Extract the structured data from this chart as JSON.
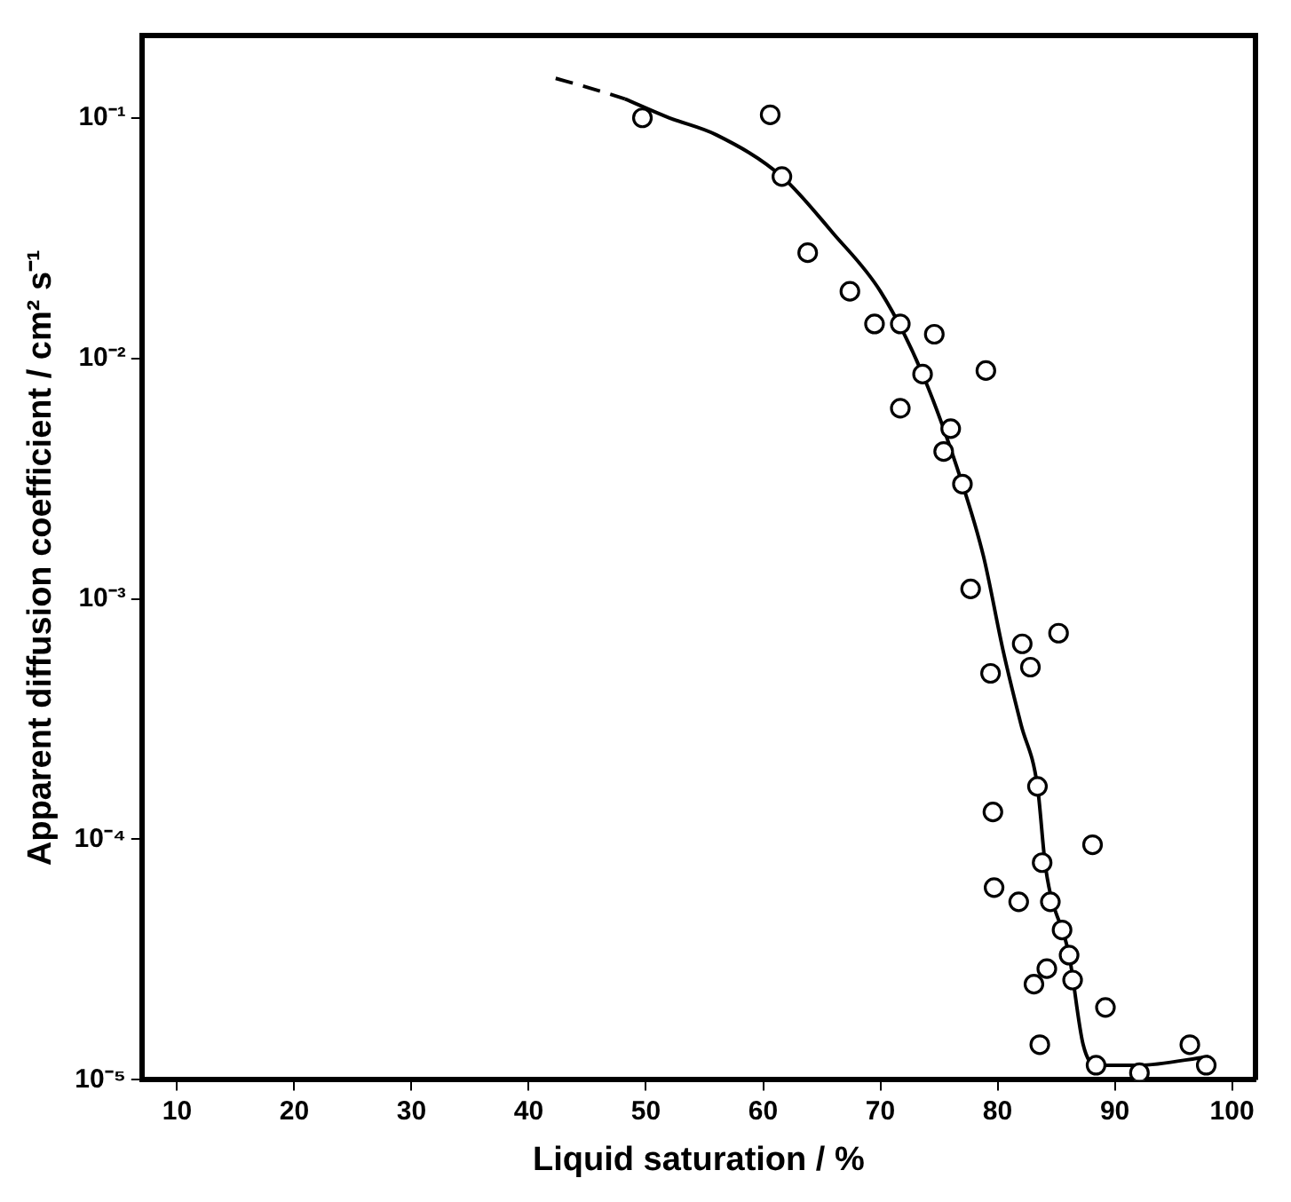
{
  "chart_data": {
    "type": "scatter",
    "xlabel": "Liquid saturation / %",
    "ylabel": "Apparent diffusion coefficient / cm² s⁻¹",
    "log": "y",
    "grid": false,
    "legend": false,
    "xlim": [
      7,
      102
    ],
    "xticks": [
      10,
      20,
      30,
      40,
      50,
      60,
      70,
      80,
      90,
      100
    ],
    "ylim": [
      1e-05,
      0.22
    ],
    "yticks": [
      {
        "value": 0.1,
        "label": "10⁻¹"
      },
      {
        "value": 0.01,
        "label": "10⁻²"
      },
      {
        "value": 0.001,
        "label": "10⁻³"
      },
      {
        "value": 0.0001,
        "label": "10⁻⁴"
      },
      {
        "value": 1e-05,
        "label": "10⁻⁵"
      }
    ],
    "series": [
      {
        "color": "#000000",
        "marker": "circle",
        "x": [
          49.7,
          60.6,
          61.6,
          63.8,
          67.4,
          69.5,
          71.7,
          74.6,
          79.0,
          73.6,
          71.7,
          76.0,
          75.4,
          77.0,
          77.7,
          82.1,
          85.2,
          79.4,
          82.8,
          83.4,
          79.6,
          88.1,
          83.8,
          79.7,
          81.8,
          84.5,
          85.5,
          86.1,
          84.2,
          86.4,
          83.1,
          89.2,
          83.6,
          88.4,
          92.1,
          96.4,
          97.8
        ],
        "values": [
          0.1,
          0.103,
          0.057,
          0.0275,
          0.019,
          0.0139,
          0.0139,
          0.0126,
          0.0089,
          0.0086,
          0.0062,
          0.0051,
          0.0041,
          0.003,
          0.0011,
          0.00065,
          0.00072,
          0.00049,
          0.00052,
          0.000166,
          0.00013,
          9.5e-05,
          8e-05,
          6.3e-05,
          5.5e-05,
          5.5e-05,
          4.2e-05,
          3.3e-05,
          2.9e-05,
          2.6e-05,
          2.5e-05,
          2e-05,
          1.4e-05,
          1.15e-05,
          1.07e-05,
          1.4e-05,
          1.15e-05
        ]
      },
      {
        "type": "line",
        "color": "#000000",
        "line_style": "dashed",
        "marker": "none",
        "x": [
          42.3,
          45,
          48.2
        ],
        "values": [
          0.146,
          0.134,
          0.12
        ]
      },
      {
        "type": "line",
        "color": "#000000",
        "line_style": "solid",
        "marker": "none",
        "x": [
          48.2,
          52,
          56,
          61.6,
          66,
          70,
          73.6,
          77,
          78.8,
          80.5,
          82,
          83.4,
          84.1,
          86.1,
          87.3,
          88.4,
          92,
          98
        ],
        "values": [
          0.12,
          0.1,
          0.085,
          0.057,
          0.033,
          0.019,
          0.0086,
          0.003,
          0.0015,
          0.0006,
          0.0003,
          0.000166,
          7.6e-05,
          3.3e-05,
          1.4e-05,
          1.15e-05,
          1.15e-05,
          1.25e-05
        ]
      }
    ]
  }
}
